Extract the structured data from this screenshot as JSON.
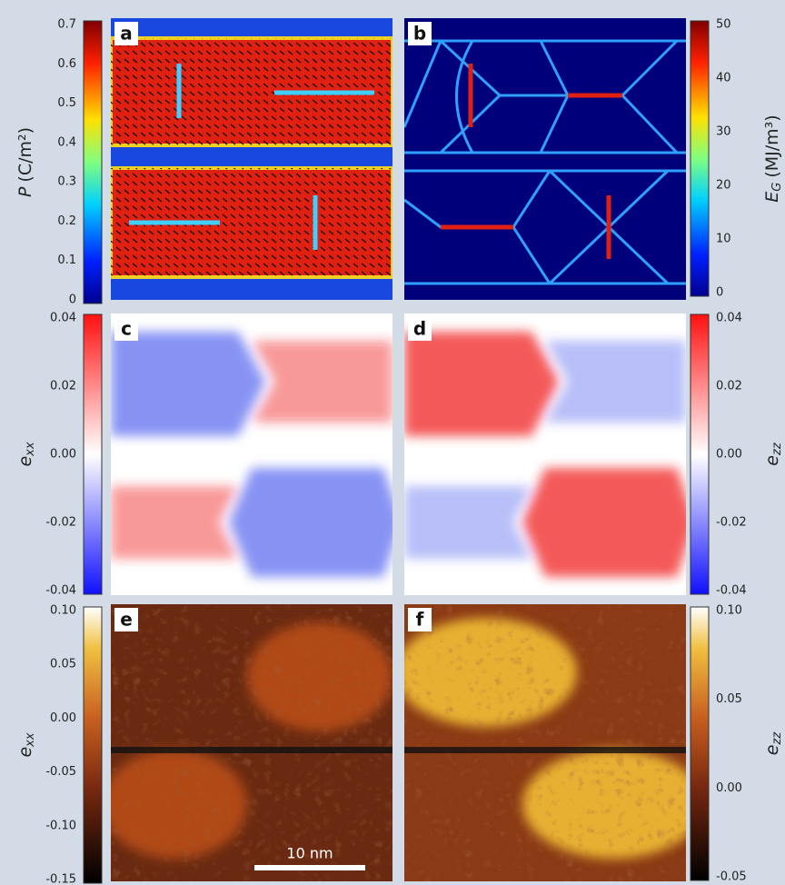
{
  "panels": [
    {
      "label": "a"
    },
    {
      "label": "b"
    },
    {
      "label": "c"
    },
    {
      "label": "d"
    },
    {
      "label": "e"
    },
    {
      "label": "f"
    }
  ],
  "colorbars": [
    {
      "symbol": "P",
      "subscript": "",
      "unit": "(C/m²)",
      "ticks": [
        "0.7",
        "0.6",
        "0.5",
        "0.4",
        "0.3",
        "0.2",
        "0.1",
        "0"
      ]
    },
    {
      "symbol": "E",
      "subscript": "G",
      "unit": "(MJ/m³)",
      "ticks": [
        "50",
        "40",
        "30",
        "20",
        "10",
        "0"
      ]
    },
    {
      "symbol": "e",
      "subscript": "xx",
      "unit": "",
      "ticks": [
        "0.04",
        "0.02",
        "0.00",
        "-0.02",
        "-0.04"
      ]
    },
    {
      "symbol": "e",
      "subscript": "zz",
      "unit": "",
      "ticks": [
        "0.04",
        "0.02",
        "0.00",
        "-0.02",
        "-0.04"
      ]
    },
    {
      "symbol": "e",
      "subscript": "xx",
      "unit": "",
      "ticks": [
        "0.10",
        "0.05",
        "0.00",
        "-0.05",
        "-0.10",
        "-0.15"
      ]
    },
    {
      "symbol": "e",
      "subscript": "zz",
      "unit": "",
      "ticks": [
        "0.10",
        "0.05",
        "0.00",
        "-0.05"
      ]
    }
  ],
  "scale_bar": "10 nm"
}
